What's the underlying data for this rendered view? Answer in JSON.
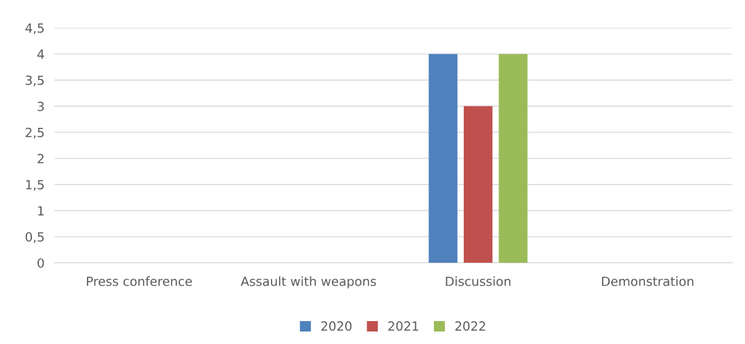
{
  "chart_data": {
    "type": "bar",
    "categories": [
      "Press conference",
      "Assault with weapons",
      "Discussion",
      "Demonstration"
    ],
    "series": [
      {
        "name": "2020",
        "color": "#4f81bd",
        "values": [
          0,
          0,
          4,
          0
        ]
      },
      {
        "name": "2021",
        "color": "#c0504d",
        "values": [
          0,
          0,
          3,
          0
        ]
      },
      {
        "name": "2022",
        "color": "#9bbb59",
        "values": [
          0,
          0,
          4,
          0
        ]
      }
    ],
    "ylim": [
      0,
      4.5
    ],
    "yticks": [
      0,
      {
        "value": 0.5,
        "label": "0,5"
      },
      1,
      {
        "value": 1.5,
        "label": "1,5"
      },
      2,
      {
        "value": 2.5,
        "label": "2,5"
      },
      3,
      {
        "value": 3.5,
        "label": "3,5"
      },
      4,
      {
        "value": 4.5,
        "label": "4,5"
      }
    ],
    "grid": "y",
    "legend": "bottom"
  }
}
